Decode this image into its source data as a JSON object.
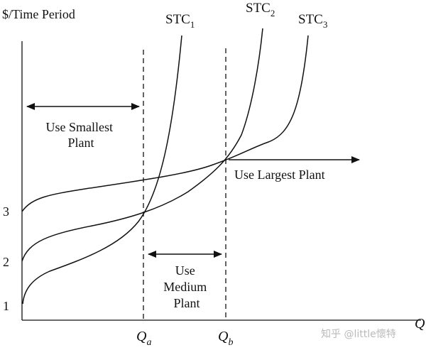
{
  "chart_data": {
    "type": "line",
    "ylabel": "$/Time Period",
    "xlabel": "Q",
    "y_ticks": [
      "1",
      "2",
      "3"
    ],
    "x_markers": [
      {
        "name": "Q",
        "sub": "a"
      },
      {
        "name": "Q",
        "sub": "b"
      }
    ],
    "series": [
      {
        "name": "STC",
        "sub": "1"
      },
      {
        "name": "STC",
        "sub": "2"
      },
      {
        "name": "STC",
        "sub": "3"
      }
    ],
    "annotations": {
      "smallest": [
        "Use Smallest",
        "Plant"
      ],
      "medium": [
        "Use",
        "Medium",
        "Plant"
      ],
      "largest": [
        "Use Largest Plant"
      ]
    },
    "grid": false,
    "legend": "none"
  },
  "watermark": "知乎 @little懷特"
}
